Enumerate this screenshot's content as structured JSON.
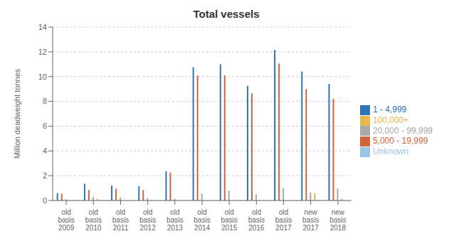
{
  "chart_data": {
    "type": "bar",
    "title": "Total vessels",
    "ylabel": "Million deadweight tonnes",
    "categories": [
      "old\nbasis\n2009",
      "old\nbasis\n2010",
      "old\nbasis\n2011",
      "old\nbasis\n2012",
      "old\nbasis\n2013",
      "old\nbasis\n2014",
      "old\nbasis\n2015",
      "old\nbasis\n2016",
      "old\nbasis\n2017",
      "new\nbasis\n2017",
      "new\nbasis\n2018"
    ],
    "series": [
      {
        "name": "1 - 4,999",
        "color": "#2E75B6",
        "values": [
          0.6,
          1.35,
          1.2,
          1.15,
          2.35,
          10.75,
          11.0,
          9.25,
          12.15,
          10.4,
          9.4
        ]
      },
      {
        "name": "5,000 - 19,999",
        "color": "#D0643B",
        "values": [
          0.55,
          0.85,
          0.95,
          0.85,
          2.25,
          10.1,
          10.1,
          8.65,
          11.05,
          9.0,
          8.2
        ]
      },
      {
        "name": "20,000 - 99,999",
        "color": "#A9A9A9",
        "values": [
          0.1,
          0.3,
          0.25,
          0.2,
          0.15,
          0.55,
          0.8,
          0.5,
          1.0,
          0.65,
          0.95
        ]
      },
      {
        "name": "100,000+",
        "color": "#E8B84B",
        "values": [
          0.0,
          0.15,
          0.0,
          0.0,
          0.0,
          0.0,
          0.0,
          0.0,
          0.0,
          0.6,
          0.15
        ]
      },
      {
        "name": "Unknown",
        "color": "#9DC3E6",
        "values": [
          0.05,
          0.0,
          0.0,
          0.0,
          0.0,
          0.0,
          0.0,
          0.0,
          0.0,
          0.0,
          0.0
        ]
      }
    ],
    "ylim": [
      0,
      14
    ],
    "yticks": [
      0,
      2,
      4,
      6,
      8,
      10,
      12,
      14
    ],
    "grid": true,
    "legend": "right"
  }
}
